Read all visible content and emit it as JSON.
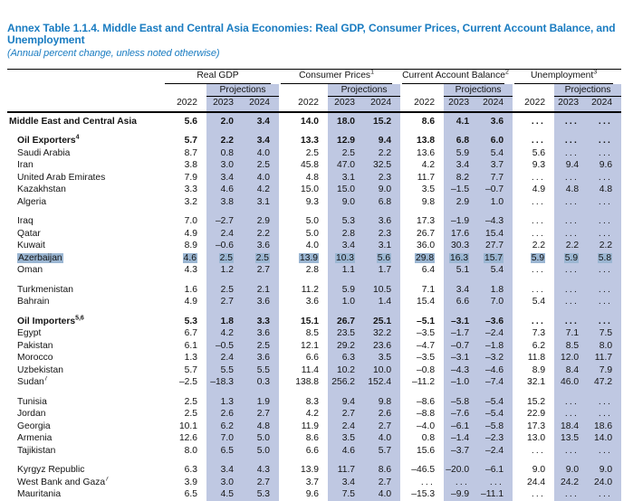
{
  "title": {
    "line1": "Annex Table 1.1.4. Middle East and Central Asia Economies: Real GDP, Consumer Prices, Current Account Balance, and",
    "line2": "Unemployment"
  },
  "subtitle": "(Annual percent change, unless noted otherwise)",
  "colors": {
    "title_blue": "#1a7cc1",
    "projection_band": "#bfc8e2",
    "selection_highlight": "#9bb6d2",
    "rule": "#000000"
  },
  "table": {
    "projections_label": "Projections",
    "years": [
      "2022",
      "2023",
      "2024"
    ],
    "groups": [
      {
        "label": "Real GDP",
        "sup": ""
      },
      {
        "label": "Consumer Prices",
        "sup": "1"
      },
      {
        "label": "Current Account Balance",
        "sup": "2"
      },
      {
        "label": "Unemployment",
        "sup": "3"
      }
    ],
    "rows": [
      {
        "name": "Middle East and Central Asia",
        "sup": "",
        "bold": true,
        "indent": 0,
        "gap": false,
        "highlight": false,
        "values": [
          "5.6",
          "2.0",
          "3.4",
          "14.0",
          "18.0",
          "15.2",
          "8.6",
          "4.1",
          "3.6",
          "...",
          "...",
          "..."
        ]
      },
      {
        "name": "Oil Exporters",
        "sup": "4",
        "bold": true,
        "indent": 1,
        "gap": true,
        "highlight": false,
        "values": [
          "5.7",
          "2.2",
          "3.4",
          "13.3",
          "12.9",
          "9.4",
          "13.8",
          "6.8",
          "6.0",
          "...",
          "...",
          "..."
        ]
      },
      {
        "name": "Saudi Arabia",
        "sup": "",
        "bold": false,
        "indent": 1,
        "gap": false,
        "highlight": false,
        "values": [
          "8.7",
          "0.8",
          "4.0",
          "2.5",
          "2.5",
          "2.2",
          "13.6",
          "5.9",
          "5.4",
          "5.6",
          "...",
          "..."
        ]
      },
      {
        "name": "Iran",
        "sup": "",
        "bold": false,
        "indent": 1,
        "gap": false,
        "highlight": false,
        "values": [
          "3.8",
          "3.0",
          "2.5",
          "45.8",
          "47.0",
          "32.5",
          "4.2",
          "3.4",
          "3.7",
          "9.3",
          "9.4",
          "9.6"
        ]
      },
      {
        "name": "United Arab Emirates",
        "sup": "",
        "bold": false,
        "indent": 1,
        "gap": false,
        "highlight": false,
        "values": [
          "7.9",
          "3.4",
          "4.0",
          "4.8",
          "3.1",
          "2.3",
          "11.7",
          "8.2",
          "7.7",
          "...",
          "...",
          "..."
        ]
      },
      {
        "name": "Kazakhstan",
        "sup": "",
        "bold": false,
        "indent": 1,
        "gap": false,
        "highlight": false,
        "values": [
          "3.3",
          "4.6",
          "4.2",
          "15.0",
          "15.0",
          "9.0",
          "3.5",
          "–1.5",
          "–0.7",
          "4.9",
          "4.8",
          "4.8"
        ]
      },
      {
        "name": "Algeria",
        "sup": "",
        "bold": false,
        "indent": 1,
        "gap": false,
        "highlight": false,
        "values": [
          "3.2",
          "3.8",
          "3.1",
          "9.3",
          "9.0",
          "6.8",
          "9.8",
          "2.9",
          "1.0",
          "...",
          "...",
          "..."
        ]
      },
      {
        "name": "Iraq",
        "sup": "",
        "bold": false,
        "indent": 1,
        "gap": true,
        "highlight": false,
        "values": [
          "7.0",
          "–2.7",
          "2.9",
          "5.0",
          "5.3",
          "3.6",
          "17.3",
          "–1.9",
          "–4.3",
          "...",
          "...",
          "..."
        ]
      },
      {
        "name": "Qatar",
        "sup": "",
        "bold": false,
        "indent": 1,
        "gap": false,
        "highlight": false,
        "values": [
          "4.9",
          "2.4",
          "2.2",
          "5.0",
          "2.8",
          "2.3",
          "26.7",
          "17.6",
          "15.4",
          "...",
          "...",
          "..."
        ]
      },
      {
        "name": "Kuwait",
        "sup": "",
        "bold": false,
        "indent": 1,
        "gap": false,
        "highlight": false,
        "values": [
          "8.9",
          "–0.6",
          "3.6",
          "4.0",
          "3.4",
          "3.1",
          "36.0",
          "30.3",
          "27.7",
          "2.2",
          "2.2",
          "2.2"
        ]
      },
      {
        "name": "Azerbaijan",
        "sup": "",
        "bold": false,
        "indent": 1,
        "gap": false,
        "highlight": true,
        "values": [
          "4.6",
          "2.5",
          "2.5",
          "13.9",
          "10.3",
          "5.6",
          "29.8",
          "16.3",
          "15.7",
          "5.9",
          "5.9",
          "5.8"
        ]
      },
      {
        "name": "Oman",
        "sup": "",
        "bold": false,
        "indent": 1,
        "gap": false,
        "highlight": false,
        "values": [
          "4.3",
          "1.2",
          "2.7",
          "2.8",
          "1.1",
          "1.7",
          "6.4",
          "5.1",
          "5.4",
          "...",
          "...",
          "..."
        ]
      },
      {
        "name": "Turkmenistan",
        "sup": "",
        "bold": false,
        "indent": 1,
        "gap": true,
        "highlight": false,
        "values": [
          "1.6",
          "2.5",
          "2.1",
          "11.2",
          "5.9",
          "10.5",
          "7.1",
          "3.4",
          "1.8",
          "...",
          "...",
          "..."
        ]
      },
      {
        "name": "Bahrain",
        "sup": "",
        "bold": false,
        "indent": 1,
        "gap": false,
        "highlight": false,
        "values": [
          "4.9",
          "2.7",
          "3.6",
          "3.6",
          "1.0",
          "1.4",
          "15.4",
          "6.6",
          "7.0",
          "5.4",
          "...",
          "..."
        ]
      },
      {
        "name": "Oil Importers",
        "sup": "5,6",
        "bold": true,
        "indent": 1,
        "gap": true,
        "highlight": false,
        "values": [
          "5.3",
          "1.8",
          "3.3",
          "15.1",
          "26.7",
          "25.1",
          "–5.1",
          "–3.1",
          "–3.6",
          "...",
          "...",
          "..."
        ]
      },
      {
        "name": "Egypt",
        "sup": "",
        "bold": false,
        "indent": 1,
        "gap": false,
        "highlight": false,
        "values": [
          "6.7",
          "4.2",
          "3.6",
          "8.5",
          "23.5",
          "32.2",
          "–3.5",
          "–1.7",
          "–2.4",
          "7.3",
          "7.1",
          "7.5"
        ]
      },
      {
        "name": "Pakistan",
        "sup": "",
        "bold": false,
        "indent": 1,
        "gap": false,
        "highlight": false,
        "values": [
          "6.1",
          "–0.5",
          "2.5",
          "12.1",
          "29.2",
          "23.6",
          "–4.7",
          "–0.7",
          "–1.8",
          "6.2",
          "8.5",
          "8.0"
        ]
      },
      {
        "name": "Morocco",
        "sup": "",
        "bold": false,
        "indent": 1,
        "gap": false,
        "highlight": false,
        "values": [
          "1.3",
          "2.4",
          "3.6",
          "6.6",
          "6.3",
          "3.5",
          "–3.5",
          "–3.1",
          "–3.2",
          "11.8",
          "12.0",
          "11.7"
        ]
      },
      {
        "name": "Uzbekistan",
        "sup": "",
        "bold": false,
        "indent": 1,
        "gap": false,
        "highlight": false,
        "values": [
          "5.7",
          "5.5",
          "5.5",
          "11.4",
          "10.2",
          "10.0",
          "–0.8",
          "–4.3",
          "–4.6",
          "8.9",
          "8.4",
          "7.9"
        ]
      },
      {
        "name": "Sudan",
        "sup": "7",
        "bold": false,
        "indent": 1,
        "gap": false,
        "highlight": false,
        "values": [
          "–2.5",
          "–18.3",
          "0.3",
          "138.8",
          "256.2",
          "152.4",
          "–11.2",
          "–1.0",
          "–7.4",
          "32.1",
          "46.0",
          "47.2"
        ]
      },
      {
        "name": "Tunisia",
        "sup": "",
        "bold": false,
        "indent": 1,
        "gap": true,
        "highlight": false,
        "values": [
          "2.5",
          "1.3",
          "1.9",
          "8.3",
          "9.4",
          "9.8",
          "–8.6",
          "–5.8",
          "–5.4",
          "15.2",
          "...",
          "..."
        ]
      },
      {
        "name": "Jordan",
        "sup": "",
        "bold": false,
        "indent": 1,
        "gap": false,
        "highlight": false,
        "values": [
          "2.5",
          "2.6",
          "2.7",
          "4.2",
          "2.7",
          "2.6",
          "–8.8",
          "–7.6",
          "–5.4",
          "22.9",
          "...",
          "..."
        ]
      },
      {
        "name": "Georgia",
        "sup": "",
        "bold": false,
        "indent": 1,
        "gap": false,
        "highlight": false,
        "values": [
          "10.1",
          "6.2",
          "4.8",
          "11.9",
          "2.4",
          "2.7",
          "–4.0",
          "–6.1",
          "–5.8",
          "17.3",
          "18.4",
          "18.6"
        ]
      },
      {
        "name": "Armenia",
        "sup": "",
        "bold": false,
        "indent": 1,
        "gap": false,
        "highlight": false,
        "values": [
          "12.6",
          "7.0",
          "5.0",
          "8.6",
          "3.5",
          "4.0",
          "0.8",
          "–1.4",
          "–2.3",
          "13.0",
          "13.5",
          "14.0"
        ]
      },
      {
        "name": "Tajikistan",
        "sup": "",
        "bold": false,
        "indent": 1,
        "gap": false,
        "highlight": false,
        "values": [
          "8.0",
          "6.5",
          "5.0",
          "6.6",
          "4.6",
          "5.7",
          "15.6",
          "–3.7",
          "–2.4",
          "...",
          "...",
          "..."
        ]
      },
      {
        "name": "Kyrgyz Republic",
        "sup": "",
        "bold": false,
        "indent": 1,
        "gap": true,
        "highlight": false,
        "values": [
          "6.3",
          "3.4",
          "4.3",
          "13.9",
          "11.7",
          "8.6",
          "–46.5",
          "–20.0",
          "–6.1",
          "9.0",
          "9.0",
          "9.0"
        ]
      },
      {
        "name": "West Bank and Gaza",
        "sup": "7",
        "bold": false,
        "indent": 1,
        "gap": false,
        "highlight": false,
        "values": [
          "3.9",
          "3.0",
          "2.7",
          "3.7",
          "3.4",
          "2.7",
          "...",
          "...",
          "...",
          "24.4",
          "24.2",
          "24.0"
        ]
      },
      {
        "name": "Mauritania",
        "sup": "",
        "bold": false,
        "indent": 1,
        "gap": false,
        "highlight": false,
        "values": [
          "6.5",
          "4.5",
          "5.3",
          "9.6",
          "7.5",
          "4.0",
          "–15.3",
          "–9.9",
          "–11.1",
          "...",
          "...",
          "..."
        ]
      }
    ]
  }
}
